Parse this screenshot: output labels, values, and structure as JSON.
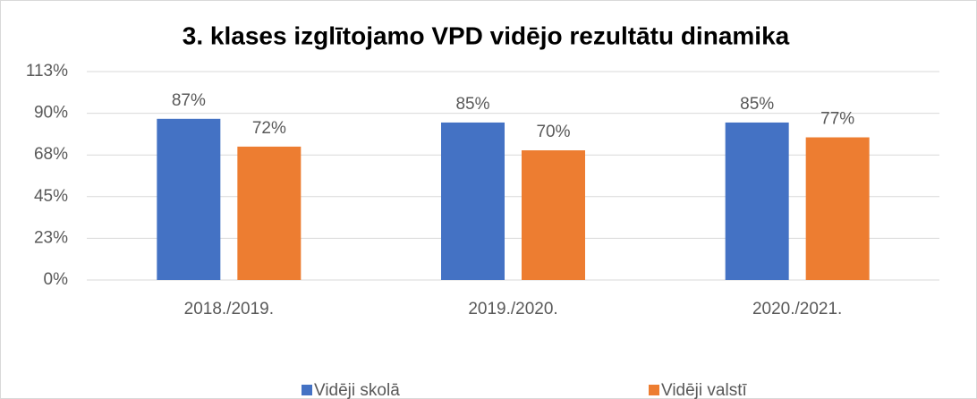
{
  "chart_data": {
    "type": "bar",
    "title": "3. klases izglītojamo VPD vidējo rezultātu dinamika",
    "categories": [
      "2018./2019.",
      "2019./2020.",
      "2020./2021."
    ],
    "series": [
      {
        "name": "Vidēji skolā",
        "color": "#4472c4",
        "values": [
          87,
          85,
          85
        ],
        "value_labels": [
          "87%",
          "85%",
          "85%"
        ]
      },
      {
        "name": "Vidēji valstī",
        "color": "#ed7d31",
        "values": [
          72,
          70,
          77
        ],
        "value_labels": [
          "72%",
          "70%",
          "77%"
        ]
      }
    ],
    "ylim": [
      0,
      112.5
    ],
    "yticks": [
      {
        "value": 0,
        "label": "0%"
      },
      {
        "value": 22.5,
        "label": "23%"
      },
      {
        "value": 45,
        "label": "45%"
      },
      {
        "value": 67.5,
        "label": "68%"
      },
      {
        "value": 90,
        "label": "90%"
      },
      {
        "value": 112.5,
        "label": "113%"
      }
    ],
    "grid": true,
    "legend": "bottom"
  }
}
